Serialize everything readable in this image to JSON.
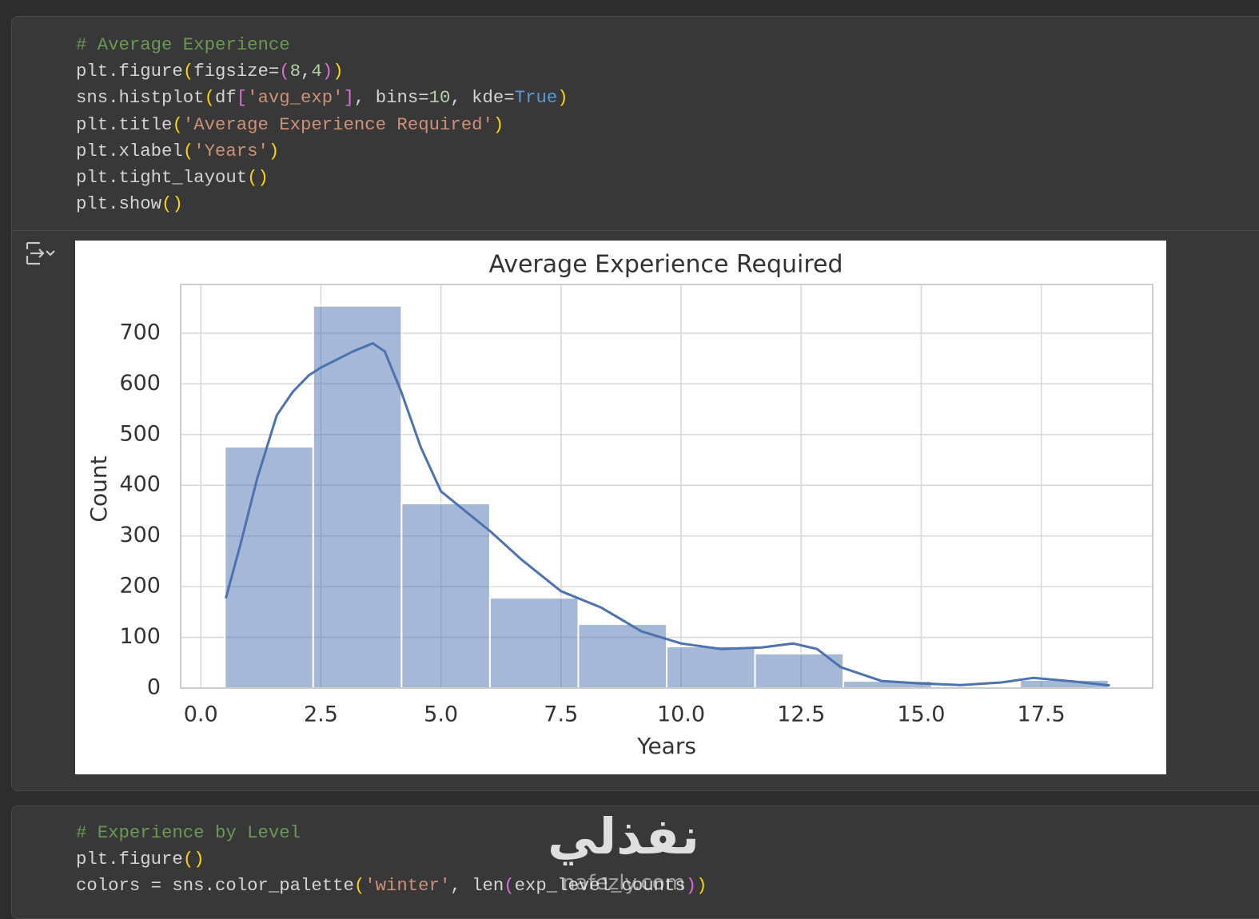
{
  "cells": [
    {
      "code": [
        [
          "# Average Experience"
        ],
        [
          "plt.figure",
          "(",
          "figsize=",
          "(",
          "8",
          ",",
          "4",
          ")",
          ")"
        ],
        [
          "sns.histplot",
          "(",
          "df",
          "[",
          "'avg_exp'",
          "]",
          ", bins=",
          "10",
          ", kde=",
          "True",
          ")"
        ],
        [
          "plt.title",
          "(",
          "'Average Experience Required'",
          ")"
        ],
        [
          "plt.xlabel",
          "(",
          "'Years'",
          ")"
        ],
        [
          "plt.tight_layout",
          "(",
          ")"
        ],
        [
          "plt.show",
          "(",
          ")"
        ]
      ]
    },
    {
      "code": [
        [
          "# Experience by Level"
        ],
        [
          "plt.figure",
          "(",
          ")"
        ],
        [
          "colors = sns.color_palette",
          "(",
          "'winter'",
          ", ",
          "len",
          "(",
          "exp_level_counts",
          ")",
          ")"
        ]
      ]
    }
  ],
  "chart_data": {
    "type": "histogram",
    "title": "Average Experience Required",
    "x_label": "Years",
    "y_label": "Count",
    "bins": [
      0.5,
      2.34,
      4.18,
      6.02,
      7.86,
      9.7,
      11.54,
      13.38,
      15.22,
      17.06,
      18.9
    ],
    "counts": [
      476,
      754,
      364,
      178,
      126,
      82,
      68,
      14,
      0,
      16
    ],
    "kde": {
      "x": [
        0.52,
        0.83,
        1.17,
        1.58,
        1.92,
        2.25,
        2.5,
        3.17,
        3.58,
        3.83,
        4.17,
        4.58,
        5.0,
        6.03,
        6.67,
        7.5,
        8.33,
        9.17,
        10.0,
        10.83,
        11.67,
        12.33,
        12.83,
        13.33,
        14.17,
        15.0,
        15.83,
        16.67,
        17.33,
        18.17,
        18.93
      ],
      "y": [
        177,
        285,
        412,
        538,
        585,
        617,
        632,
        664,
        680,
        664,
        585,
        475,
        388,
        309,
        254,
        191,
        159,
        112,
        88,
        77,
        80,
        88,
        77,
        41,
        14,
        9,
        6,
        11,
        20,
        13,
        5
      ]
    },
    "color": "#4c72b0",
    "xlim": [
      -0.42,
      19.82
    ],
    "xticks": [
      {
        "value": 0,
        "label": "0.0"
      },
      2.5,
      {
        "value": 5,
        "label": "5.0"
      },
      7.5,
      {
        "value": 10,
        "label": "10.0"
      },
      12.5,
      {
        "value": 15,
        "label": "15.0"
      },
      17.5
    ],
    "ylim": [
      0,
      796
    ],
    "yticks": [
      0,
      100,
      200,
      300,
      400,
      500,
      600,
      700
    ],
    "grid": true
  },
  "watermark": {
    "logo": "نفذلي",
    "site": "nafezly.com"
  }
}
